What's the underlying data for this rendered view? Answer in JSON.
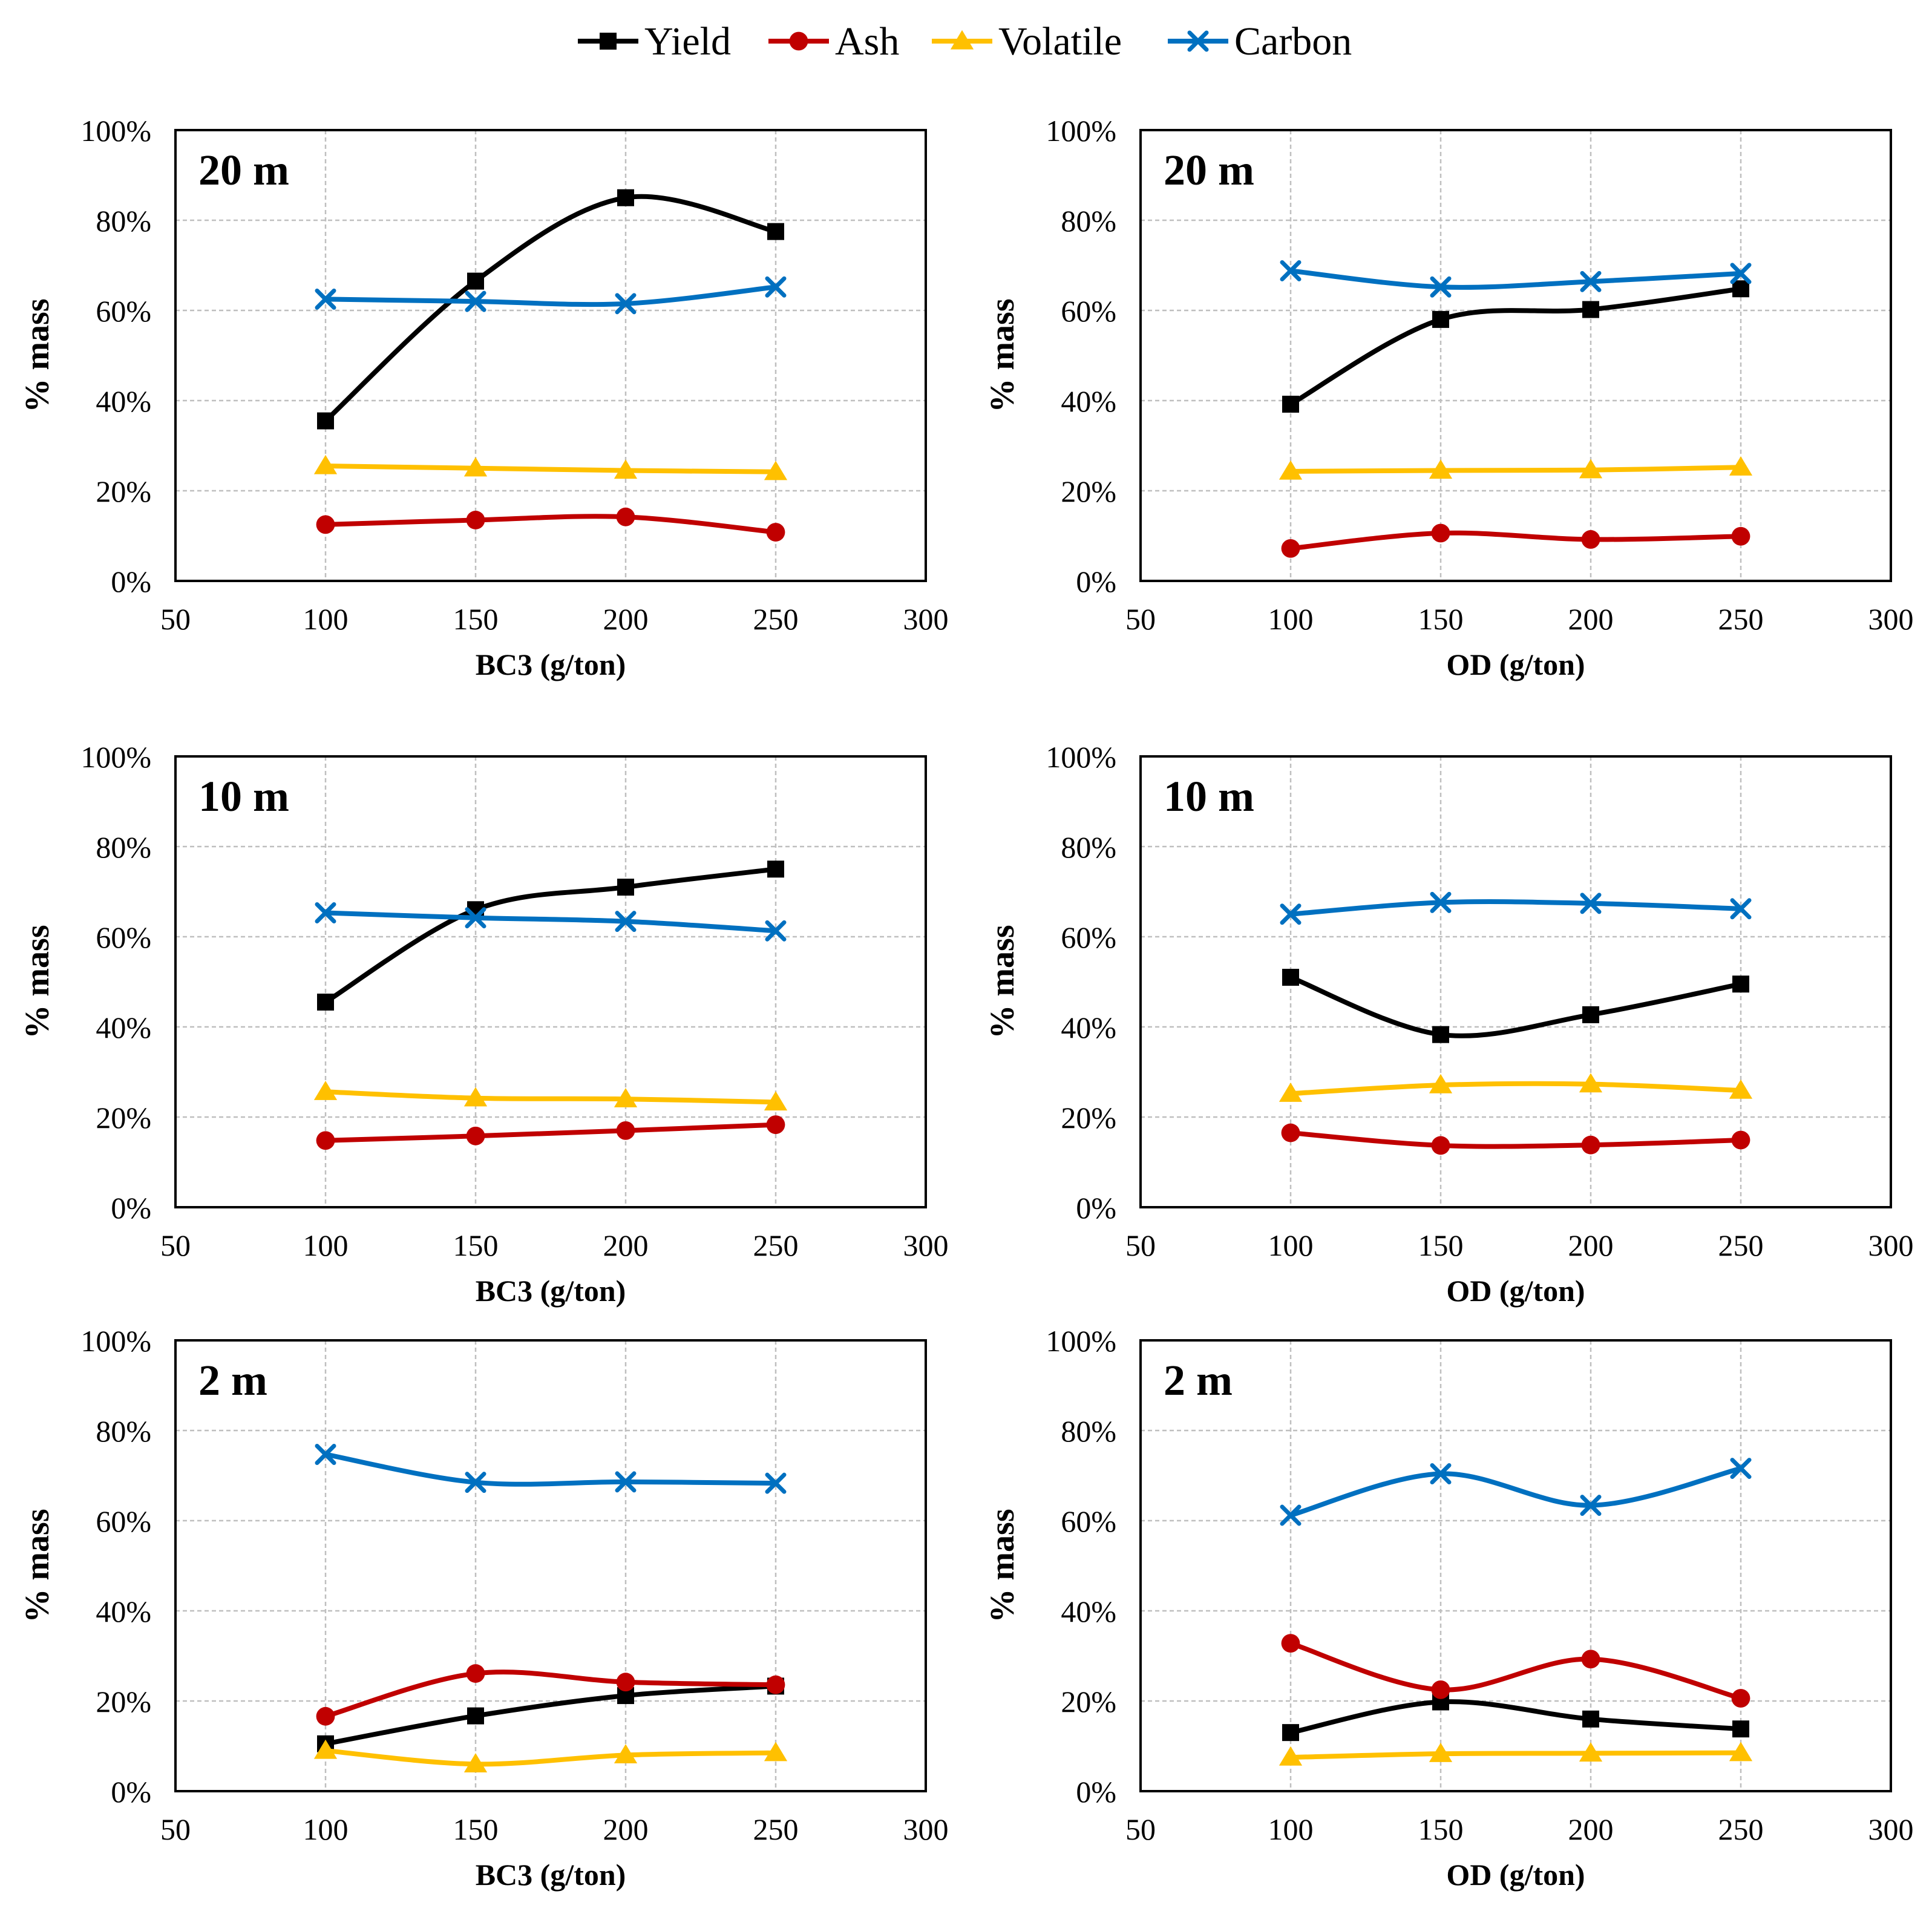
{
  "legend": [
    {
      "name": "Yield",
      "color": "#000000",
      "marker": "square"
    },
    {
      "name": "Ash",
      "color": "#C00000",
      "marker": "circle"
    },
    {
      "name": "Volatile",
      "color": "#FFC000",
      "marker": "triangle"
    },
    {
      "name": "Carbon",
      "color": "#0070C0",
      "marker": "x"
    }
  ],
  "chart_data": [
    {
      "type": "line",
      "title": "20 m",
      "xlabel": "BC3 (g/ton)",
      "ylabel": "% mass",
      "xlim": [
        50,
        300
      ],
      "ylim": [
        0,
        100
      ],
      "grid": true,
      "x": [
        100,
        150,
        200,
        250
      ],
      "xticks": [
        "50",
        "100",
        "150",
        "200",
        "250",
        "300"
      ],
      "yticks": [
        "0%",
        "20%",
        "40%",
        "60%",
        "80%",
        "100%"
      ],
      "series": [
        {
          "name": "Yield",
          "values": [
            35.5,
            66.5,
            85,
            77.5
          ]
        },
        {
          "name": "Ash",
          "values": [
            12.5,
            13.5,
            14.2,
            10.8
          ]
        },
        {
          "name": "Volatile",
          "values": [
            25.5,
            25,
            24.5,
            24.2
          ]
        },
        {
          "name": "Carbon",
          "values": [
            62.5,
            62,
            61.5,
            65.2
          ]
        }
      ]
    },
    {
      "type": "line",
      "title": "20 m",
      "xlabel": "OD  (g/ton)",
      "ylabel": "% mass",
      "xlim": [
        50,
        300
      ],
      "ylim": [
        0,
        100
      ],
      "grid": true,
      "x": [
        100,
        150,
        200,
        250
      ],
      "xticks": [
        "50",
        "100",
        "150",
        "200",
        "250",
        "300"
      ],
      "yticks": [
        "0%",
        "20%",
        "40%",
        "60%",
        "80%",
        "100%"
      ],
      "series": [
        {
          "name": "Yield",
          "values": [
            39.2,
            58,
            60.2,
            64.8
          ]
        },
        {
          "name": "Ash",
          "values": [
            7.2,
            10.6,
            9.2,
            9.9
          ]
        },
        {
          "name": "Volatile",
          "values": [
            24.3,
            24.5,
            24.6,
            25.2
          ]
        },
        {
          "name": "Carbon",
          "values": [
            68.8,
            65.2,
            66.4,
            68.2
          ]
        }
      ]
    },
    {
      "type": "line",
      "title": "10 m",
      "xlabel": "BC3 (g/ton)",
      "ylabel": "% mass",
      "xlim": [
        50,
        300
      ],
      "ylim": [
        0,
        100
      ],
      "grid": true,
      "x": [
        100,
        150,
        200,
        250
      ],
      "xticks": [
        "50",
        "100",
        "150",
        "200",
        "250",
        "300"
      ],
      "yticks": [
        "0%",
        "20%",
        "40%",
        "60%",
        "80%",
        "100%"
      ],
      "series": [
        {
          "name": "Yield",
          "values": [
            45.5,
            66,
            71,
            75
          ]
        },
        {
          "name": "Ash",
          "values": [
            14.8,
            15.8,
            17,
            18.3
          ]
        },
        {
          "name": "Volatile",
          "values": [
            25.6,
            24.2,
            24,
            23.3
          ]
        },
        {
          "name": "Carbon",
          "values": [
            65.3,
            64.2,
            63.4,
            61.3
          ]
        }
      ]
    },
    {
      "type": "line",
      "title": "10 m",
      "xlabel": "OD  (g/ton)",
      "ylabel": "% mass",
      "xlim": [
        50,
        300
      ],
      "ylim": [
        0,
        100
      ],
      "grid": true,
      "x": [
        100,
        150,
        200,
        250
      ],
      "xticks": [
        "50",
        "100",
        "150",
        "200",
        "250",
        "300"
      ],
      "yticks": [
        "0%",
        "20%",
        "40%",
        "60%",
        "80%",
        "100%"
      ],
      "series": [
        {
          "name": "Yield",
          "values": [
            51,
            38.3,
            42.7,
            49.5
          ]
        },
        {
          "name": "Ash",
          "values": [
            16.5,
            13.7,
            13.8,
            14.9
          ]
        },
        {
          "name": "Volatile",
          "values": [
            25.2,
            27.1,
            27.3,
            25.9
          ]
        },
        {
          "name": "Carbon",
          "values": [
            65,
            67.6,
            67.4,
            66.2
          ]
        }
      ]
    },
    {
      "type": "line",
      "title": "2 m",
      "xlabel": "BC3 (g/ton)",
      "ylabel": "% mass",
      "xlim": [
        50,
        300
      ],
      "ylim": [
        0,
        100
      ],
      "grid": true,
      "x": [
        100,
        150,
        200,
        250
      ],
      "xticks": [
        "50",
        "100",
        "150",
        "200",
        "250",
        "300"
      ],
      "yticks": [
        "0%",
        "20%",
        "40%",
        "60%",
        "80%",
        "100%"
      ],
      "series": [
        {
          "name": "Yield",
          "values": [
            10.5,
            16.7,
            21.2,
            23.3
          ]
        },
        {
          "name": "Ash",
          "values": [
            16.6,
            26.1,
            24.2,
            23.6
          ]
        },
        {
          "name": "Volatile",
          "values": [
            9,
            6,
            8,
            8.5
          ]
        },
        {
          "name": "Carbon",
          "values": [
            74.7,
            68.5,
            68.6,
            68.3
          ]
        }
      ]
    },
    {
      "type": "line",
      "title": "2 m",
      "xlabel": "OD (g/ton)",
      "ylabel": "% mass",
      "xlim": [
        50,
        300
      ],
      "ylim": [
        0,
        100
      ],
      "grid": true,
      "x": [
        100,
        150,
        200,
        250
      ],
      "xticks": [
        "50",
        "100",
        "150",
        "200",
        "250",
        "300"
      ],
      "yticks": [
        "0%",
        "20%",
        "40%",
        "60%",
        "80%",
        "100%"
      ],
      "series": [
        {
          "name": "Yield",
          "values": [
            13,
            19.8,
            16,
            13.8
          ]
        },
        {
          "name": "Ash",
          "values": [
            32.8,
            22.5,
            29.3,
            20.6
          ]
        },
        {
          "name": "Volatile",
          "values": [
            7.5,
            8.3,
            8.4,
            8.5
          ]
        },
        {
          "name": "Carbon",
          "values": [
            61.2,
            70.4,
            63.4,
            71.6
          ]
        }
      ]
    }
  ]
}
